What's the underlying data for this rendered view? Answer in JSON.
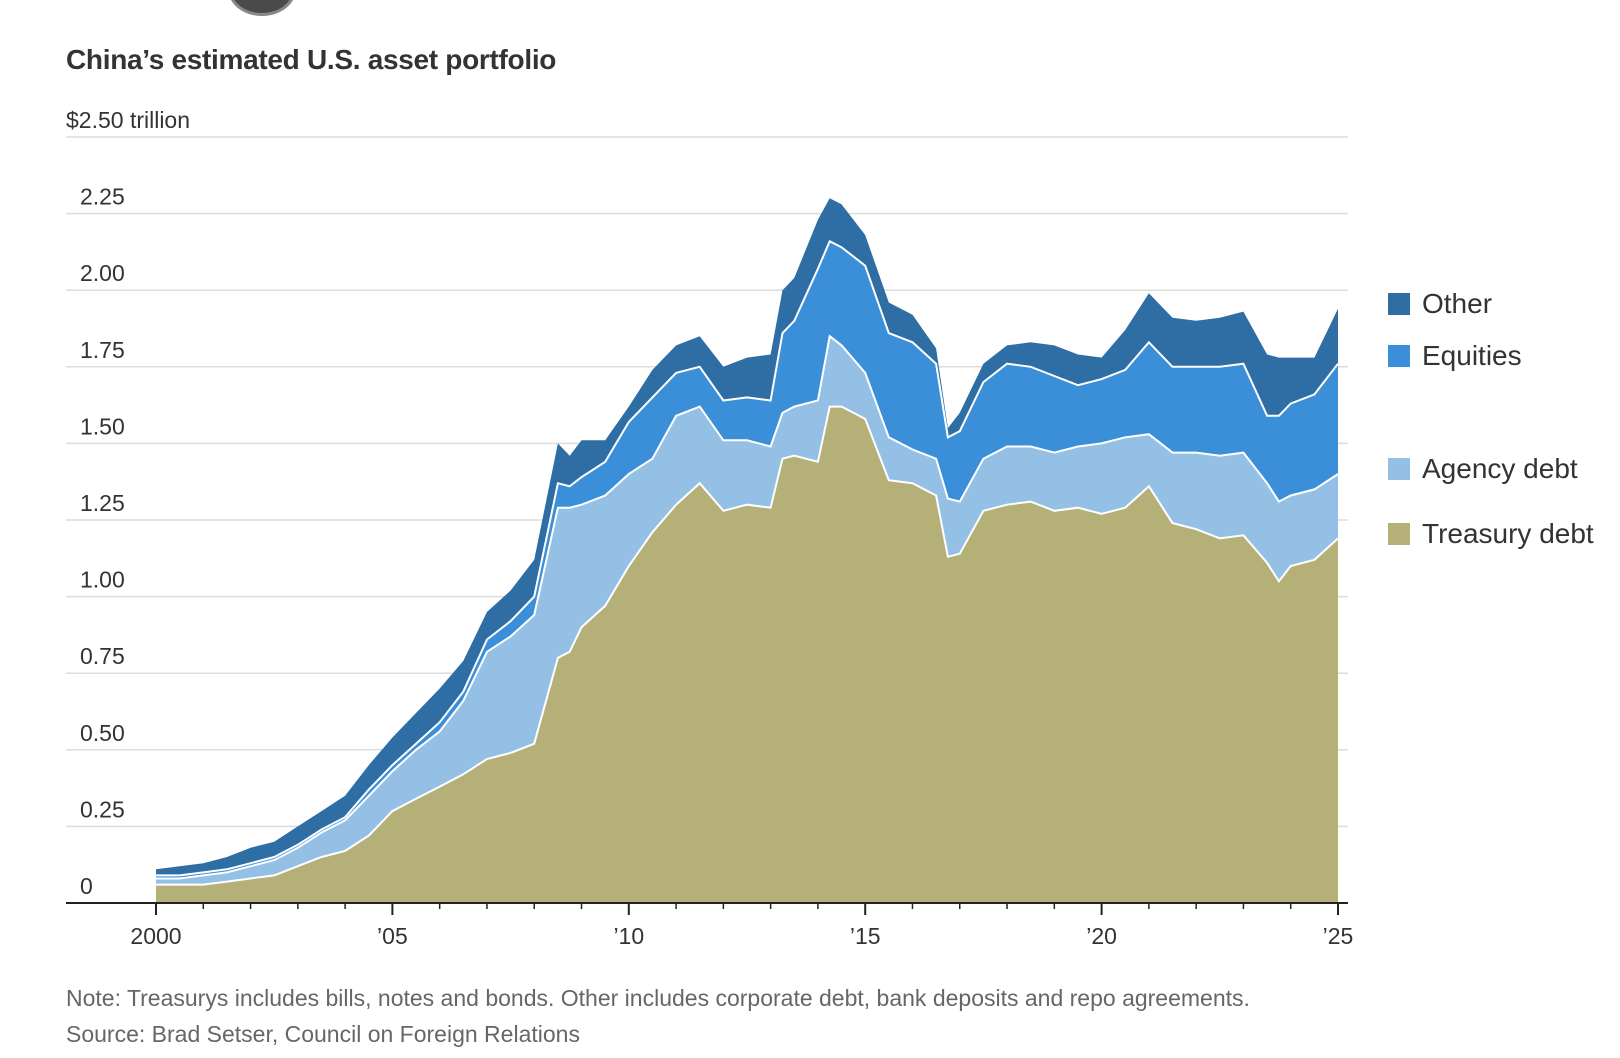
{
  "chart_data": {
    "type": "area",
    "stacked": true,
    "title": "China’s estimated U.S. asset portfolio",
    "y_unit_label": "$2.50 trillion",
    "ylim": [
      0,
      2.5
    ],
    "y_ticks": [
      0,
      0.25,
      0.5,
      0.75,
      1.0,
      1.25,
      1.5,
      1.75,
      2.0,
      2.25,
      2.5
    ],
    "y_tick_labels": [
      "0",
      "0.25",
      "0.50",
      "0.75",
      "1.00",
      "1.25",
      "1.50",
      "1.75",
      "2.00",
      "2.25",
      "$2.50 trillion"
    ],
    "xlim": [
      2000,
      2025
    ],
    "x_ticks": [
      2000,
      2005,
      2010,
      2015,
      2020,
      2025
    ],
    "x_tick_labels": [
      "2000",
      "’05",
      "’10",
      "’15",
      "’20",
      "’25"
    ],
    "grid": true,
    "legend_position": "right",
    "x": [
      2000.0,
      2000.5,
      2001.0,
      2001.5,
      2002.0,
      2002.5,
      2003.0,
      2003.5,
      2004.0,
      2004.5,
      2005.0,
      2005.5,
      2006.0,
      2006.5,
      2007.0,
      2007.5,
      2008.0,
      2008.5,
      2008.75,
      2009.0,
      2009.5,
      2010.0,
      2010.5,
      2011.0,
      2011.5,
      2012.0,
      2012.5,
      2013.0,
      2013.25,
      2013.5,
      2014.0,
      2014.25,
      2014.5,
      2015.0,
      2015.5,
      2016.0,
      2016.5,
      2016.75,
      2017.0,
      2017.5,
      2018.0,
      2018.5,
      2019.0,
      2019.5,
      2020.0,
      2020.5,
      2021.0,
      2021.5,
      2022.0,
      2022.5,
      2023.0,
      2023.5,
      2023.75,
      2024.0,
      2024.5,
      2025.0
    ],
    "series": [
      {
        "name": "Treasury debt",
        "color": "#b5b077",
        "values": [
          0.06,
          0.06,
          0.06,
          0.07,
          0.08,
          0.09,
          0.12,
          0.15,
          0.17,
          0.22,
          0.3,
          0.34,
          0.38,
          0.42,
          0.47,
          0.49,
          0.52,
          0.8,
          0.82,
          0.9,
          0.97,
          1.1,
          1.21,
          1.3,
          1.37,
          1.28,
          1.3,
          1.29,
          1.45,
          1.46,
          1.44,
          1.62,
          1.62,
          1.58,
          1.38,
          1.37,
          1.33,
          1.13,
          1.14,
          1.28,
          1.3,
          1.31,
          1.28,
          1.29,
          1.27,
          1.29,
          1.36,
          1.24,
          1.22,
          1.19,
          1.2,
          1.11,
          1.05,
          1.1,
          1.12,
          1.19
        ]
      },
      {
        "name": "Agency debt",
        "color": "#95c0e6",
        "values": [
          0.02,
          0.02,
          0.03,
          0.03,
          0.04,
          0.05,
          0.06,
          0.08,
          0.1,
          0.13,
          0.13,
          0.16,
          0.18,
          0.24,
          0.35,
          0.38,
          0.42,
          0.49,
          0.47,
          0.4,
          0.36,
          0.3,
          0.24,
          0.29,
          0.25,
          0.23,
          0.21,
          0.2,
          0.15,
          0.16,
          0.2,
          0.23,
          0.2,
          0.15,
          0.14,
          0.11,
          0.12,
          0.19,
          0.17,
          0.17,
          0.19,
          0.18,
          0.19,
          0.2,
          0.23,
          0.23,
          0.17,
          0.23,
          0.25,
          0.27,
          0.27,
          0.26,
          0.26,
          0.23,
          0.23,
          0.21
        ]
      },
      {
        "name": "Equities",
        "color": "#3a8fd8",
        "values": [
          0.01,
          0.01,
          0.01,
          0.01,
          0.01,
          0.01,
          0.01,
          0.01,
          0.01,
          0.02,
          0.02,
          0.02,
          0.03,
          0.03,
          0.04,
          0.05,
          0.06,
          0.08,
          0.07,
          0.09,
          0.11,
          0.17,
          0.2,
          0.14,
          0.13,
          0.13,
          0.14,
          0.15,
          0.26,
          0.28,
          0.43,
          0.31,
          0.32,
          0.35,
          0.34,
          0.35,
          0.31,
          0.2,
          0.23,
          0.25,
          0.27,
          0.26,
          0.25,
          0.2,
          0.21,
          0.22,
          0.3,
          0.28,
          0.28,
          0.29,
          0.29,
          0.22,
          0.28,
          0.3,
          0.31,
          0.36
        ]
      },
      {
        "name": "Other",
        "color": "#2e6ea4",
        "values": [
          0.02,
          0.03,
          0.03,
          0.04,
          0.05,
          0.05,
          0.06,
          0.06,
          0.07,
          0.08,
          0.09,
          0.1,
          0.11,
          0.1,
          0.09,
          0.1,
          0.12,
          0.13,
          0.1,
          0.12,
          0.07,
          0.05,
          0.09,
          0.09,
          0.1,
          0.11,
          0.13,
          0.15,
          0.14,
          0.14,
          0.16,
          0.14,
          0.14,
          0.1,
          0.1,
          0.09,
          0.05,
          0.03,
          0.06,
          0.06,
          0.06,
          0.08,
          0.1,
          0.1,
          0.07,
          0.13,
          0.16,
          0.16,
          0.15,
          0.16,
          0.17,
          0.2,
          0.19,
          0.15,
          0.12,
          0.18
        ]
      }
    ],
    "note": "Note: Treasurys includes bills, notes and bonds. Other includes corporate debt, bank deposits and repo agreements.",
    "source": "Source: Brad Setser, Council on Foreign Relations"
  },
  "legend": {
    "items": [
      {
        "label": "Other",
        "color": "#2e6ea4"
      },
      {
        "label": "Equities",
        "color": "#3a8fd8"
      },
      {
        "label": "Agency debt",
        "color": "#95c0e6"
      },
      {
        "label": "Treasury debt",
        "color": "#b5b077"
      }
    ]
  }
}
